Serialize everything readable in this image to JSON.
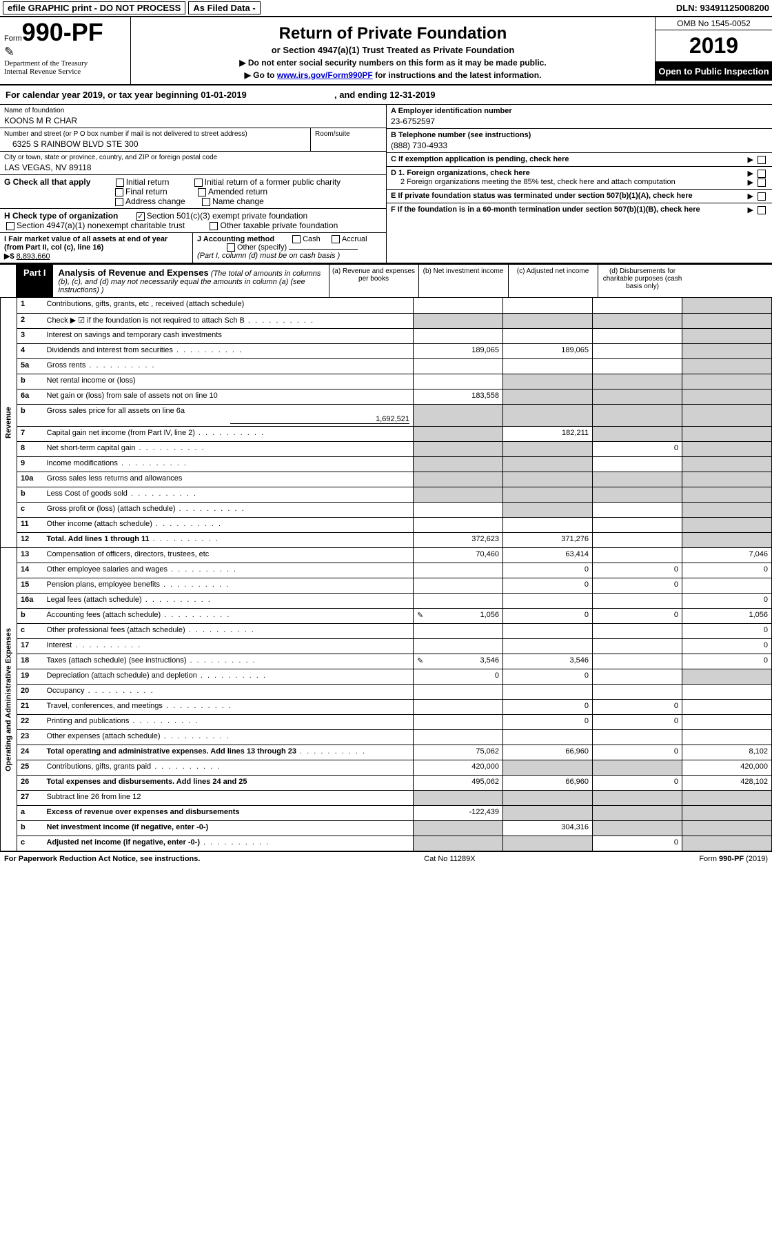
{
  "topbar": {
    "efile": "efile GRAPHIC print - DO NOT PROCESS",
    "asFiled": "As Filed Data -",
    "dlnLabel": "DLN:",
    "dln": "93491125008200"
  },
  "header": {
    "formWord": "Form",
    "formNo": "990-PF",
    "dept": "Department of the Treasury",
    "irs": "Internal Revenue Service",
    "title": "Return of Private Foundation",
    "subtitle": "or Section 4947(a)(1) Trust Treated as Private Foundation",
    "instr1": "▶ Do not enter social security numbers on this form as it may be made public.",
    "instr2Pre": "▶ Go to ",
    "instr2Link": "www.irs.gov/Form990PF",
    "instr2Post": " for instructions and the latest information.",
    "omb": "OMB No 1545-0052",
    "year": "2019",
    "openPublic": "Open to Public Inspection"
  },
  "calYear": {
    "text1": "For calendar year 2019, or tax year beginning ",
    "begin": "01-01-2019",
    "text2": ", and ending ",
    "end": "12-31-2019"
  },
  "nameBlock": {
    "nameLabel": "Name of foundation",
    "name": "KOONS M R CHAR",
    "addrLabel": "Number and street (or P O  box number if mail is not delivered to street address)",
    "roomLabel": "Room/suite",
    "addr": "6325 S RAINBOW BLVD STE 300",
    "cityLabel": "City or town, state or province, country, and ZIP or foreign postal code",
    "city": "LAS VEGAS, NV  89118"
  },
  "rightBlock": {
    "A": "A Employer identification number",
    "Aval": "23-6752597",
    "B": "B Telephone number (see instructions)",
    "Bval": "(888) 730-4933",
    "C": "C If exemption application is pending, check here",
    "D1": "D 1. Foreign organizations, check here",
    "D2": "2 Foreign organizations meeting the 85% test, check here and attach computation",
    "E": "E If private foundation status was terminated under section 507(b)(1)(A), check here",
    "F": "F If the foundation is in a 60-month termination under section 507(b)(1)(B), check here"
  },
  "G": {
    "label": "G Check all that apply",
    "opts": [
      "Initial return",
      "Initial return of a former public charity",
      "Final return",
      "Amended return",
      "Address change",
      "Name change"
    ]
  },
  "H": {
    "label": "H Check type of organization",
    "opt1": "Section 501(c)(3) exempt private foundation",
    "opt2": "Section 4947(a)(1) nonexempt charitable trust",
    "opt3": "Other taxable private foundation"
  },
  "I": {
    "label": "I Fair market value of all assets at end of year (from Part II, col  (c), line 16)",
    "arrow": "▶$",
    "val": "8,893,660"
  },
  "J": {
    "label": "J Accounting method",
    "cash": "Cash",
    "accrual": "Accrual",
    "other": "Other (specify)",
    "note": "(Part I, column (d) must be on cash basis )"
  },
  "part1": {
    "label": "Part I",
    "title": "Analysis of Revenue and Expenses",
    "titleNote": "(The total of amounts in columns (b), (c), and (d) may not necessarily equal the amounts in column (a) (see instructions) )",
    "colA": "(a)   Revenue and expenses per books",
    "colB": "(b)   Net investment income",
    "colC": "(c)   Adjusted net income",
    "colD": "(d)   Disbursements for charitable purposes (cash basis only)"
  },
  "sideLabels": {
    "revenue": "Revenue",
    "expenses": "Operating and Administrative Expenses"
  },
  "rows": [
    {
      "n": "1",
      "desc": "Contributions, gifts, grants, etc , received (attach schedule)",
      "a": "",
      "b": "",
      "c": "",
      "d": "",
      "dShaded": true
    },
    {
      "n": "2",
      "desc": "Check ▶ ☑ if the foundation is not required to attach Sch B",
      "dots": true,
      "a": "",
      "b": "",
      "c": "",
      "d": "",
      "allShaded": true
    },
    {
      "n": "3",
      "desc": "Interest on savings and temporary cash investments",
      "a": "",
      "b": "",
      "c": "",
      "d": "",
      "dShaded": true
    },
    {
      "n": "4",
      "desc": "Dividends and interest from securities",
      "dots": true,
      "a": "189,065",
      "b": "189,065",
      "c": "",
      "d": "",
      "dShaded": true
    },
    {
      "n": "5a",
      "desc": "Gross rents",
      "dots": true,
      "a": "",
      "b": "",
      "c": "",
      "d": "",
      "dShaded": true
    },
    {
      "n": "b",
      "desc": "Net rental income or (loss)",
      "a": "",
      "b": "",
      "c": "",
      "d": "",
      "bcShaded": true,
      "dShaded": true
    },
    {
      "n": "6a",
      "desc": "Net gain or (loss) from sale of assets not on line 10",
      "a": "183,558",
      "b": "",
      "c": "",
      "d": "",
      "bcShaded": true,
      "dShaded": true
    },
    {
      "n": "b",
      "desc": "Gross sales price for all assets on line 6a",
      "inlineVal": "1,692,521",
      "a": "",
      "b": "",
      "c": "",
      "d": "",
      "allShaded": true
    },
    {
      "n": "7",
      "desc": "Capital gain net income (from Part IV, line 2)",
      "dots": true,
      "a": "",
      "b": "182,211",
      "c": "",
      "d": "",
      "aShaded": true,
      "cdShaded": true
    },
    {
      "n": "8",
      "desc": "Net short-term capital gain",
      "dots": true,
      "a": "",
      "b": "",
      "c": "0",
      "d": "",
      "abShaded": true,
      "dShaded": true
    },
    {
      "n": "9",
      "desc": "Income modifications",
      "dots": true,
      "a": "",
      "b": "",
      "c": "",
      "d": "",
      "abShaded": true,
      "dShaded": true
    },
    {
      "n": "10a",
      "desc": "Gross sales less returns and allowances",
      "a": "",
      "b": "",
      "c": "",
      "d": "",
      "allShaded": true
    },
    {
      "n": "b",
      "desc": "Less  Cost of goods sold",
      "dots": true,
      "a": "",
      "b": "",
      "c": "",
      "d": "",
      "allShaded": true
    },
    {
      "n": "c",
      "desc": "Gross profit or (loss) (attach schedule)",
      "dots": true,
      "a": "",
      "b": "",
      "c": "",
      "d": "",
      "bShaded": true,
      "dShaded": true
    },
    {
      "n": "11",
      "desc": "Other income (attach schedule)",
      "dots": true,
      "a": "",
      "b": "",
      "c": "",
      "d": "",
      "dShaded": true
    },
    {
      "n": "12",
      "desc": "Total. Add lines 1 through 11",
      "dots": true,
      "bold": true,
      "a": "372,623",
      "b": "371,276",
      "c": "",
      "d": "",
      "dShaded": true
    }
  ],
  "expRows": [
    {
      "n": "13",
      "desc": "Compensation of officers, directors, trustees, etc",
      "a": "70,460",
      "b": "63,414",
      "c": "",
      "d": "7,046"
    },
    {
      "n": "14",
      "desc": "Other employee salaries and wages",
      "dots": true,
      "a": "",
      "b": "0",
      "c": "0",
      "d": "0"
    },
    {
      "n": "15",
      "desc": "Pension plans, employee benefits",
      "dots": true,
      "a": "",
      "b": "0",
      "c": "0",
      "d": ""
    },
    {
      "n": "16a",
      "desc": "Legal fees (attach schedule)",
      "dots": true,
      "a": "",
      "b": "",
      "c": "",
      "d": "0"
    },
    {
      "n": "b",
      "desc": "Accounting fees (attach schedule)",
      "dots": true,
      "icon": true,
      "a": "1,056",
      "b": "0",
      "c": "0",
      "d": "1,056"
    },
    {
      "n": "c",
      "desc": "Other professional fees (attach schedule)",
      "dots": true,
      "a": "",
      "b": "",
      "c": "",
      "d": "0"
    },
    {
      "n": "17",
      "desc": "Interest",
      "dots": true,
      "a": "",
      "b": "",
      "c": "",
      "d": "0"
    },
    {
      "n": "18",
      "desc": "Taxes (attach schedule) (see instructions)",
      "dots": true,
      "icon": true,
      "a": "3,546",
      "b": "3,546",
      "c": "",
      "d": "0"
    },
    {
      "n": "19",
      "desc": "Depreciation (attach schedule) and depletion",
      "dots": true,
      "a": "0",
      "b": "0",
      "c": "",
      "d": "",
      "dShaded": true
    },
    {
      "n": "20",
      "desc": "Occupancy",
      "dots": true,
      "a": "",
      "b": "",
      "c": "",
      "d": ""
    },
    {
      "n": "21",
      "desc": "Travel, conferences, and meetings",
      "dots": true,
      "a": "",
      "b": "0",
      "c": "0",
      "d": ""
    },
    {
      "n": "22",
      "desc": "Printing and publications",
      "dots": true,
      "a": "",
      "b": "0",
      "c": "0",
      "d": ""
    },
    {
      "n": "23",
      "desc": "Other expenses (attach schedule)",
      "dots": true,
      "a": "",
      "b": "",
      "c": "",
      "d": ""
    },
    {
      "n": "24",
      "desc": "Total operating and administrative expenses. Add lines 13 through 23",
      "dots": true,
      "bold": true,
      "a": "75,062",
      "b": "66,960",
      "c": "0",
      "d": "8,102"
    },
    {
      "n": "25",
      "desc": "Contributions, gifts, grants paid",
      "dots": true,
      "a": "420,000",
      "b": "",
      "c": "",
      "d": "420,000",
      "bcShaded": true
    },
    {
      "n": "26",
      "desc": "Total expenses and disbursements. Add lines 24 and 25",
      "bold": true,
      "a": "495,062",
      "b": "66,960",
      "c": "0",
      "d": "428,102"
    },
    {
      "n": "27",
      "desc": "Subtract line 26 from line 12",
      "a": "",
      "b": "",
      "c": "",
      "d": "",
      "allShaded": true
    },
    {
      "n": "a",
      "desc": "Excess of revenue over expenses and disbursements",
      "bold": true,
      "a": "-122,439",
      "b": "",
      "c": "",
      "d": "",
      "bcdShaded": true
    },
    {
      "n": "b",
      "desc": "Net investment income (if negative, enter -0-)",
      "bold": true,
      "a": "",
      "b": "304,316",
      "c": "",
      "d": "",
      "aShaded": true,
      "cdShaded": true
    },
    {
      "n": "c",
      "desc": "Adjusted net income (if negative, enter -0-)",
      "dots": true,
      "bold": true,
      "a": "",
      "b": "",
      "c": "0",
      "d": "",
      "abShaded": true,
      "dShaded": true
    }
  ],
  "footer": {
    "left": "For Paperwork Reduction Act Notice, see instructions.",
    "mid": "Cat  No  11289X",
    "right": "Form 990-PF (2019)"
  }
}
